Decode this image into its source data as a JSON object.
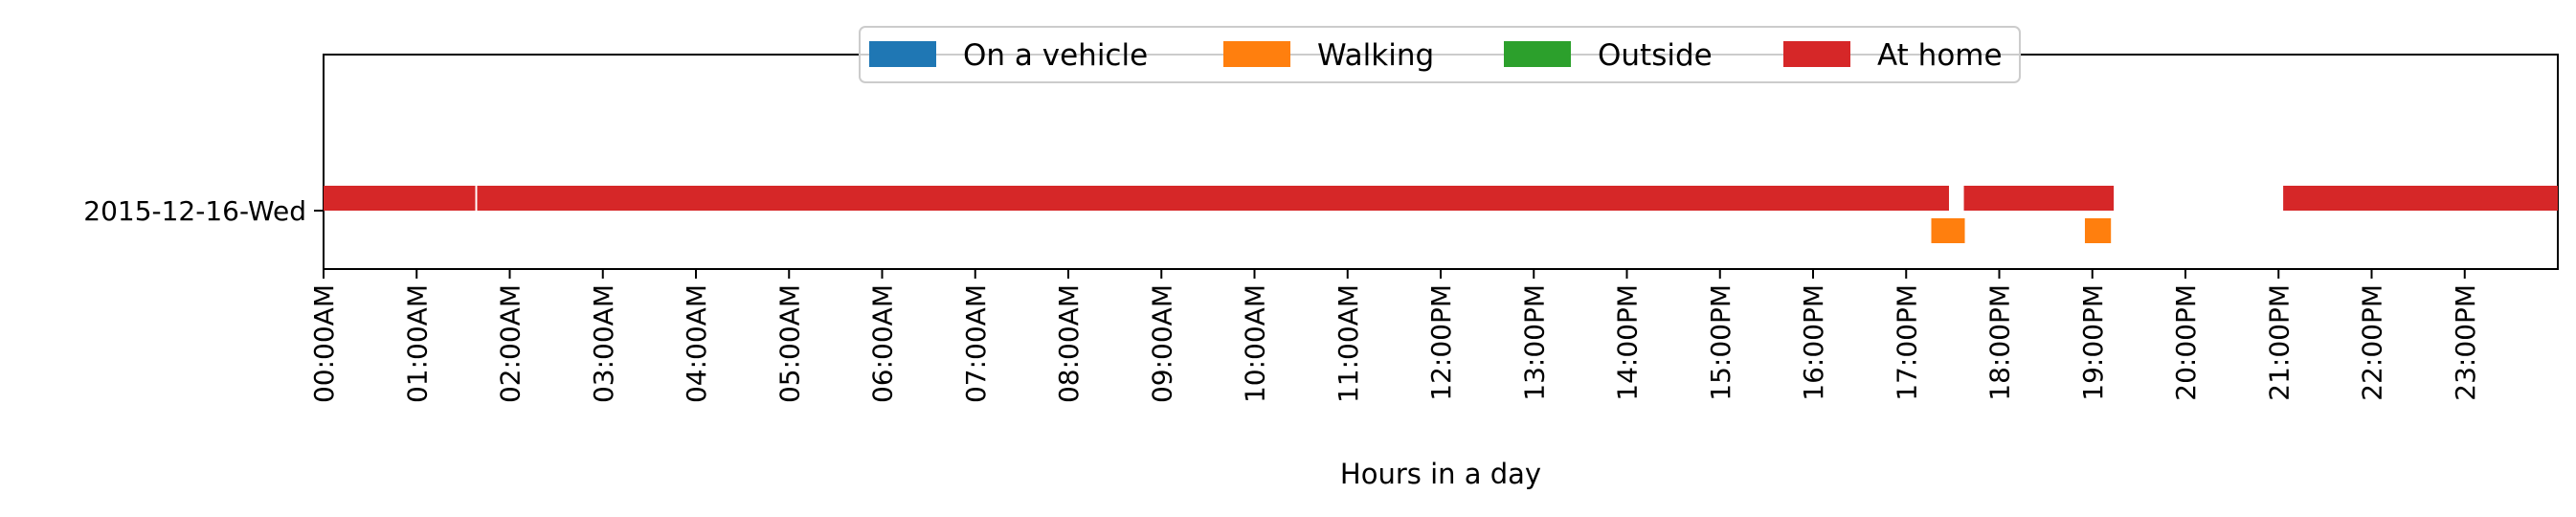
{
  "chart_data": {
    "type": "timeline",
    "xlabel": "Hours in a day",
    "ylabel": "",
    "xlim": [
      0,
      24
    ],
    "x_tick_labels": [
      "00:00AM",
      "01:00AM",
      "02:00AM",
      "03:00AM",
      "04:00AM",
      "05:00AM",
      "06:00AM",
      "07:00AM",
      "08:00AM",
      "09:00AM",
      "10:00AM",
      "11:00AM",
      "12:00PM",
      "13:00PM",
      "14:00PM",
      "15:00PM",
      "16:00PM",
      "17:00PM",
      "18:00PM",
      "19:00PM",
      "20:00PM",
      "21:00PM",
      "22:00PM",
      "23:00PM"
    ],
    "categories": [
      "2015-12-16-Wed"
    ],
    "legend": {
      "placement": "top-center",
      "entries": [
        {
          "name": "On a vehicle",
          "color": "#1f77b4"
        },
        {
          "name": "Walking",
          "color": "#ff7f0e"
        },
        {
          "name": "Outside",
          "color": "#2ca02c"
        },
        {
          "name": "At home",
          "color": "#d62728"
        }
      ]
    },
    "series": [
      {
        "name": "At home",
        "color": "#d62728",
        "intervals": [
          {
            "day": "2015-12-16-Wed",
            "start": 0.0,
            "end": 1.63
          },
          {
            "day": "2015-12-16-Wed",
            "start": 1.65,
            "end": 17.46
          },
          {
            "day": "2015-12-16-Wed",
            "start": 17.62,
            "end": 19.23
          },
          {
            "day": "2015-12-16-Wed",
            "start": 21.05,
            "end": 24.0
          }
        ]
      },
      {
        "name": "Walking",
        "color": "#ff7f0e",
        "intervals": [
          {
            "day": "2015-12-16-Wed",
            "start": 17.27,
            "end": 17.63
          },
          {
            "day": "2015-12-16-Wed",
            "start": 18.92,
            "end": 19.2
          }
        ]
      },
      {
        "name": "On a vehicle",
        "color": "#1f77b4",
        "intervals": []
      },
      {
        "name": "Outside",
        "color": "#2ca02c",
        "intervals": []
      }
    ],
    "grid": false
  }
}
